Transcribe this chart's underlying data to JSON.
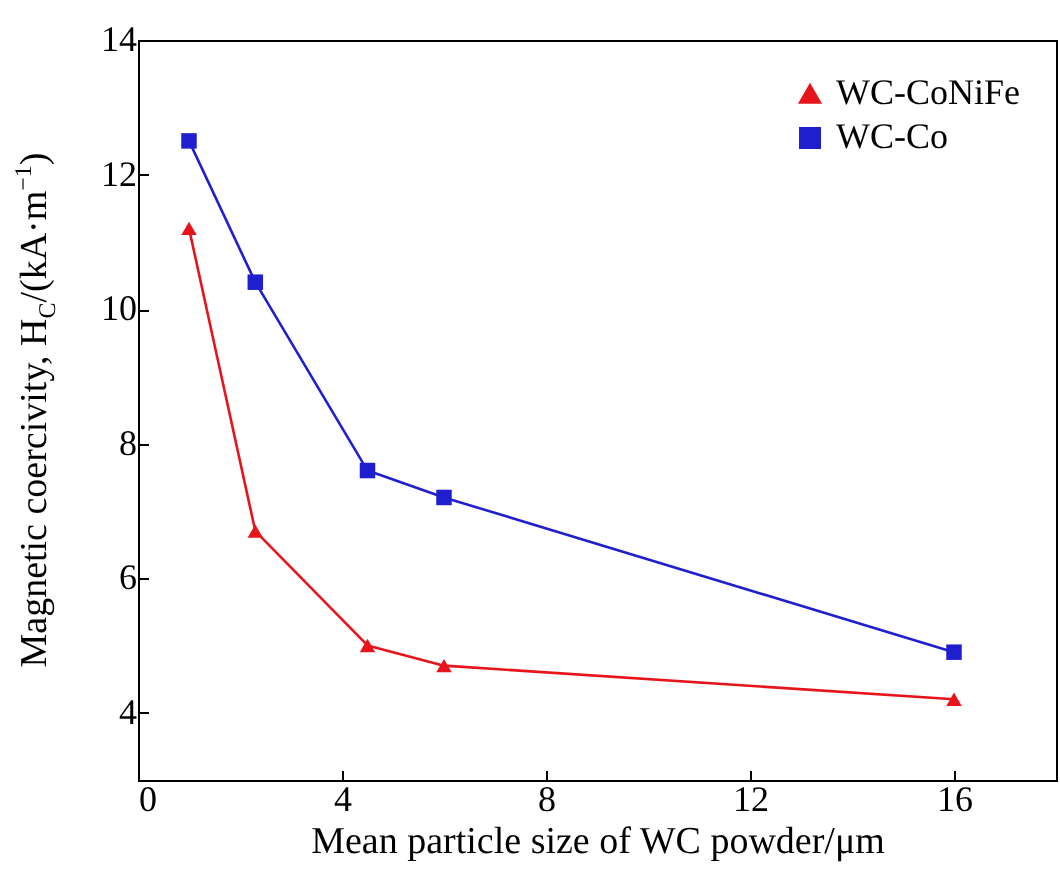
{
  "chart_data": {
    "type": "line",
    "xlabel": "Mean particle size of WC powder/μm",
    "ylabel": "Magnetic coercivity, H$_{C}$/(kA·m$^{−1}$)",
    "x": [
      1,
      2.3,
      4.5,
      6,
      16
    ],
    "series": [
      {
        "name": "WC-CoNiFe",
        "color": "#e8141b",
        "marker": "triangle",
        "values": [
          11.2,
          6.7,
          5.0,
          4.7,
          4.2
        ]
      },
      {
        "name": "WC-Co",
        "color": "#1f1fd0",
        "marker": "square",
        "values": [
          12.5,
          10.4,
          7.6,
          7.2,
          4.9
        ]
      }
    ],
    "xlim": [
      0,
      18
    ],
    "xticks": [
      0,
      4,
      8,
      12,
      16
    ],
    "ylim": [
      3,
      14
    ],
    "yticks": [
      4,
      6,
      8,
      10,
      12,
      14
    ],
    "grid": false,
    "legend": "top right",
    "line_style": "solid"
  }
}
